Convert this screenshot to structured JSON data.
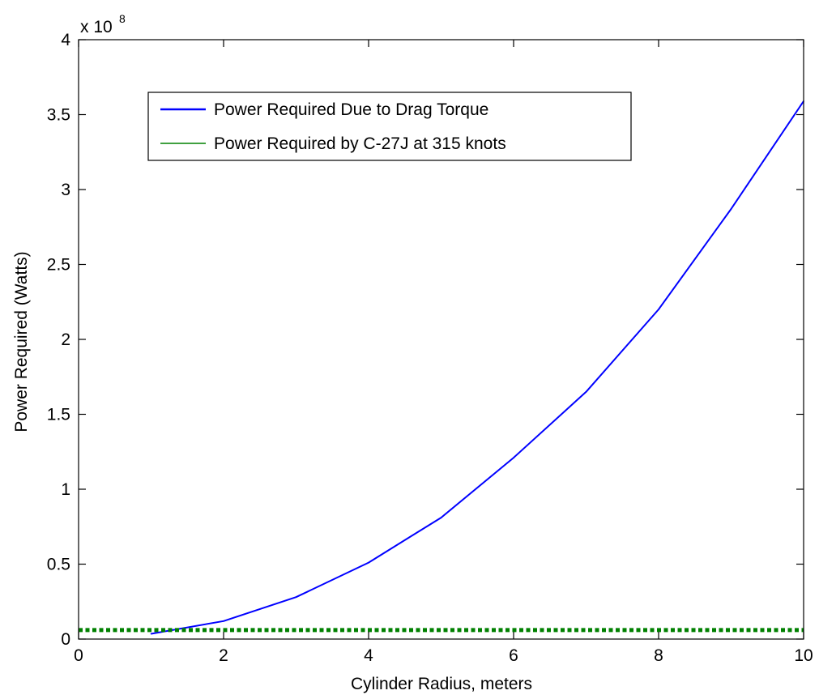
{
  "chart_data": {
    "type": "line",
    "xlabel": "Cylinder Radius, meters",
    "ylabel": "Power Required (Watts)",
    "xlim": [
      0,
      10
    ],
    "ylim": [
      0,
      400000000
    ],
    "x_ticks": [
      0,
      2,
      4,
      6,
      8,
      10
    ],
    "x_tick_labels": [
      "0",
      "2",
      "4",
      "6",
      "8",
      "10"
    ],
    "y_ticks": [
      0,
      50000000,
      100000000,
      150000000,
      200000000,
      250000000,
      300000000,
      350000000,
      400000000
    ],
    "y_tick_labels": [
      "0",
      "0.5",
      "1",
      "1.5",
      "2",
      "2.5",
      "3",
      "3.5",
      "4"
    ],
    "y_exponent_base": "x 10",
    "y_exponent_power": "8",
    "grid": false,
    "legend_position": "top-left",
    "series": [
      {
        "name": "Power Required Due to Drag Torque",
        "color": "#0000ff",
        "style": "solid",
        "x": [
          1,
          2,
          3,
          4,
          5,
          6,
          7,
          8,
          9,
          10
        ],
        "y": [
          3500000,
          12000000,
          28000000,
          51000000,
          81000000,
          121000000,
          165000000,
          220000000,
          287000000,
          359000000
        ]
      },
      {
        "name": "Power Required by C-27J at 315 knots",
        "color": "#008000",
        "style": "dotted",
        "x": [
          0,
          10
        ],
        "y": [
          6000000,
          6000000
        ]
      }
    ]
  }
}
